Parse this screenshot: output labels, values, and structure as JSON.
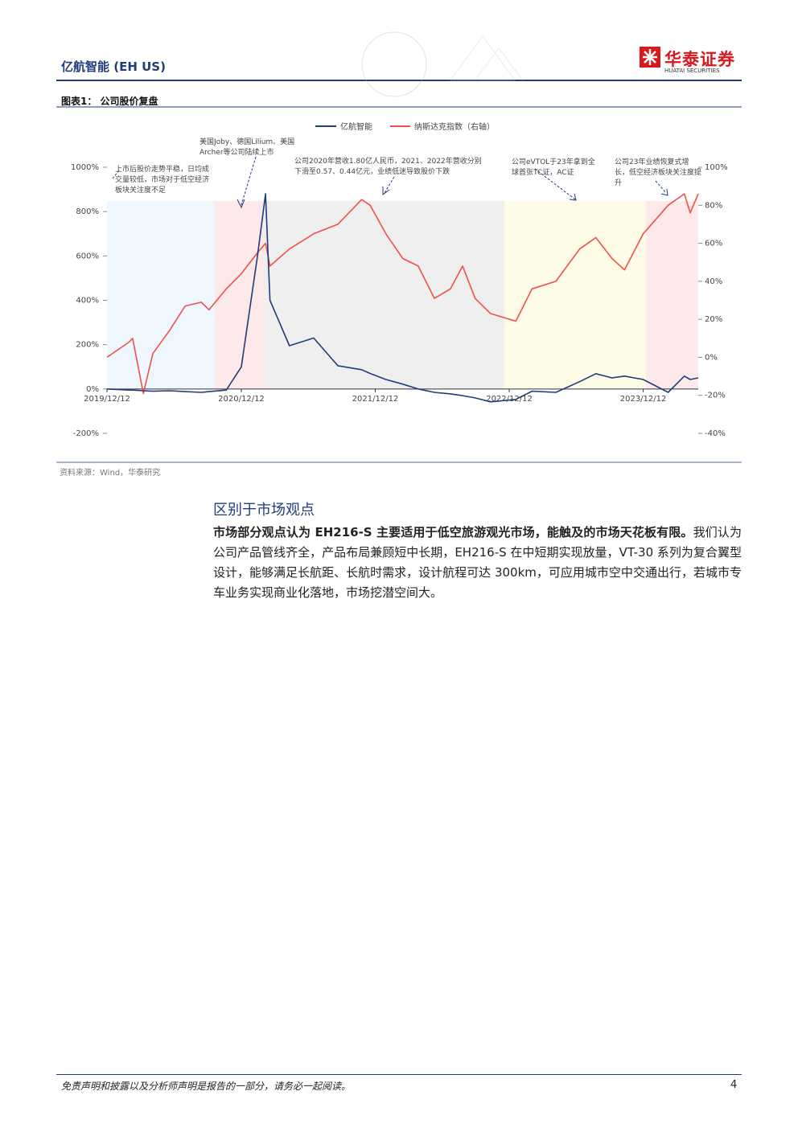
{
  "header": {
    "title": "亿航智能 (EH US)",
    "logo_cn": "华泰证券",
    "logo_en": "HUATAI SECURITIES"
  },
  "figure": {
    "title": "图表1： 公司股价复盘",
    "source": "资料来源：Wind，华泰研究"
  },
  "chart_data": {
    "type": "line",
    "x": [
      "2019/12/12",
      "2020/02/10",
      "2020/02/20",
      "2020/03/20",
      "2020/04/15",
      "2020/05/30",
      "2020/07/12",
      "2020/08/25",
      "2020/09/15",
      "2020/11/01",
      "2020/12/12",
      "2021/01/25",
      "2021/02/16",
      "2021/02/28",
      "2021/04/22",
      "2021/06/27",
      "2021/09/01",
      "2021/11/05",
      "2021/11/28",
      "2022/01/10",
      "2022/02/25",
      "2022/04/08",
      "2022/05/22",
      "2022/07/05",
      "2022/08/07",
      "2022/09/10",
      "2022/10/22",
      "2022/12/30",
      "2023/02/12",
      "2023/04/18",
      "2023/06/22",
      "2023/08/05",
      "2023/09/18",
      "2023/10/22",
      "2023/12/12",
      "2024/02/18",
      "2024/04/02",
      "2024/04/18",
      "2024/05/10"
    ],
    "series": [
      {
        "name": "亿航智能",
        "color": "#1f3d7a",
        "values": [
          0,
          -5,
          -5,
          -8,
          -10,
          -8,
          -12,
          -15,
          -12,
          -5,
          100,
          600,
          880,
          400,
          195,
          230,
          105,
          87,
          70,
          43,
          22,
          0,
          -15,
          -22,
          -30,
          -40,
          -58,
          -47,
          -10,
          -15,
          33,
          69,
          50,
          58,
          43,
          -15,
          58,
          43,
          50
        ]
      },
      {
        "name": "纳斯达克指数（右轴）",
        "color": "#f0504a",
        "axis": "y2",
        "values": [
          0,
          8,
          10,
          -19,
          2,
          14,
          27,
          29,
          25,
          36,
          44,
          55,
          60,
          48,
          57,
          65,
          70,
          83,
          80,
          65,
          52,
          48,
          31,
          36,
          48,
          31,
          23,
          19,
          36,
          40,
          57,
          63,
          52,
          46,
          65,
          80,
          86,
          76,
          86
        ]
      }
    ],
    "xlim": [
      "2019/12/12",
      "2024/05/10"
    ],
    "xticks": [
      "2019/12/12",
      "2020/12/12",
      "2021/12/12",
      "2022/12/12",
      "2023/12/12"
    ],
    "ylim": [
      -200,
      1000
    ],
    "yticks": [
      {
        "value": -200,
        "label": "-200%"
      },
      {
        "value": 0,
        "label": "0%"
      },
      {
        "value": 200,
        "label": "200%"
      },
      {
        "value": 400,
        "label": "400%"
      },
      {
        "value": 600,
        "label": "600%"
      },
      {
        "value": 800,
        "label": "800%"
      },
      {
        "value": 1000,
        "label": "1000%"
      }
    ],
    "y2lim": [
      -40,
      100
    ],
    "y2ticks": [
      {
        "value": -40,
        "label": "-40%"
      },
      {
        "value": -20,
        "label": "-20%"
      },
      {
        "value": 0,
        "label": "0%"
      },
      {
        "value": 20,
        "label": "20%"
      },
      {
        "value": 40,
        "label": "40%"
      },
      {
        "value": 60,
        "label": "60%"
      },
      {
        "value": 80,
        "label": "80%"
      },
      {
        "value": 100,
        "label": "100%"
      }
    ],
    "legend": "top",
    "annotations": [
      "上市后股价走势平稳，日均成交量较低，市场对于低空经济板块关注度不足",
      "美国Joby、德国Lilium、美国Archer等公司陆续上市",
      "公司2020年营收1.80亿人民币，2021、2022年营收分别下滑至0.57、0.44亿元，业绩低迷导致股价下跌",
      "公司eVTOL于23年拿到全球首张TC证，AC证",
      "公司23年业绩恢复式增长，低空经济板块关注度提升"
    ]
  },
  "section": {
    "heading": "区别于市场观点",
    "paragraph_bold": "市场部分观点认为 EH216-S 主要适用于低空旅游观光市场，能触及的市场天花板有限。",
    "paragraph_rest": "我们认为公司产品管线齐全，产品布局兼顾短中长期，EH216-S 在中短期实现放量，VT-30 系列为复合翼型设计，能够满足长航距、长航时需求，设计航程可达 300km，可应用城市空中交通出行，若城市专车业务实现商业化落地，市场挖潜空间大。"
  },
  "footer": {
    "disclaimer": "免责声明和披露以及分析师声明是报告的一部分，请务必一起阅读。",
    "page": "4"
  }
}
